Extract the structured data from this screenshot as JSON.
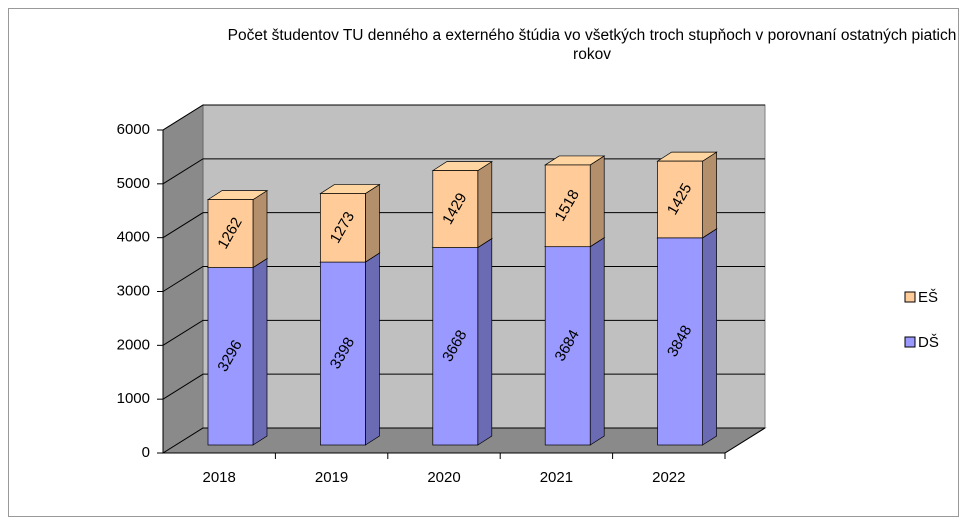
{
  "chart_data": {
    "type": "stacked-bar-3d",
    "title": "Počet študentov TU denného a externého štúdia vo všetkých  troch stupňoch v porovnaní ostatných piatich rokov",
    "categories": [
      "2018",
      "2019",
      "2020",
      "2021",
      "2022"
    ],
    "series": [
      {
        "name": "DŠ",
        "color": "#9999ff",
        "values": [
          3296,
          3398,
          3668,
          3684,
          3848
        ]
      },
      {
        "name": "EŠ",
        "color": "#ffcc99",
        "values": [
          1262,
          1273,
          1429,
          1518,
          1425
        ]
      }
    ],
    "ylim": [
      0,
      6000
    ],
    "yticks": [
      0,
      1000,
      2000,
      3000,
      4000,
      5000,
      6000
    ],
    "grid": true,
    "legend": "right"
  }
}
